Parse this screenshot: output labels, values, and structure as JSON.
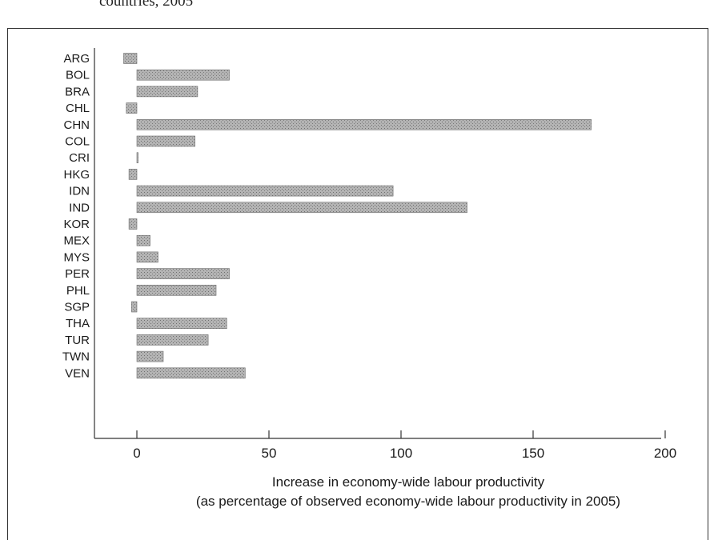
{
  "caption": "countries, 2005",
  "chart_data": {
    "type": "bar",
    "orientation": "horizontal",
    "categories": [
      "ARG",
      "BOL",
      "BRA",
      "CHL",
      "CHN",
      "COL",
      "CRI",
      "HKG",
      "IDN",
      "IND",
      "KOR",
      "MEX",
      "MYS",
      "PER",
      "PHL",
      "SGP",
      "THA",
      "TUR",
      "TWN",
      "VEN"
    ],
    "values": [
      -5,
      35,
      23,
      -4,
      172,
      22,
      0,
      -3,
      97,
      125,
      -3,
      5,
      8,
      35,
      30,
      -2,
      34,
      27,
      10,
      41
    ],
    "xticks": [
      0,
      50,
      100,
      150,
      200
    ],
    "xlim": [
      -15,
      200
    ],
    "xlabel_line1": "Increase in economy-wide labour productivity",
    "xlabel_line2": "(as percentage of observed economy-wide labour productivity in 2005)",
    "grid": false,
    "bar_fill": "#9a9a9a",
    "axis_color": "#333333"
  }
}
